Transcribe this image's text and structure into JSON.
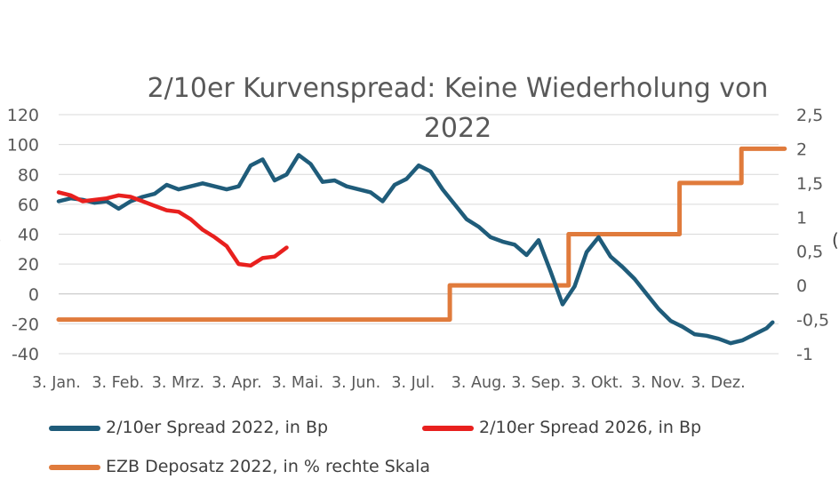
{
  "chart_data": {
    "type": "line",
    "title_line1": "2/10er Kurvenspread: Keine Wiederholung von",
    "title_line2": "2022",
    "x_categories": [
      "3. Jan.",
      "3. Feb.",
      "3. Mrz.",
      "3. Apr.",
      "3. Mai.",
      "3. Jun.",
      "3. Jul.",
      "3. Aug.",
      "3. Sep.",
      "3. Okt.",
      "3. Nov.",
      "3. Dez."
    ],
    "left_axis": {
      "ylim": [
        -40,
        120
      ],
      "ticks": [
        "-40",
        "-20",
        "0",
        "20",
        "40",
        "60",
        "80",
        "100",
        "120"
      ]
    },
    "right_axis": {
      "ylim": [
        -1,
        2.5
      ],
      "ticks": [
        "-1",
        "-0,5",
        "0",
        "0,5",
        "1",
        "1,5",
        "2",
        "2,5"
      ]
    },
    "series": [
      {
        "name": "2/10er Spread 2022, in Bp",
        "color": "#1F5C7A",
        "axis": "left",
        "x": [
          0,
          0.2,
          0.4,
          0.6,
          0.8,
          1.0,
          1.2,
          1.4,
          1.6,
          1.8,
          2.0,
          2.2,
          2.4,
          2.6,
          2.8,
          3.0,
          3.2,
          3.4,
          3.6,
          3.8,
          4.0,
          4.2,
          4.4,
          4.6,
          4.8,
          5.0,
          5.2,
          5.4,
          5.6,
          5.8,
          6.0,
          6.2,
          6.4,
          6.6,
          6.8,
          7.0,
          7.2,
          7.4,
          7.6,
          7.8,
          8.0,
          8.2,
          8.4,
          8.6,
          8.8,
          9.0,
          9.2,
          9.4,
          9.6,
          9.8,
          10.0,
          10.2,
          10.4,
          10.6,
          10.8,
          11.0,
          11.2,
          11.4,
          11.6,
          11.8,
          11.9
        ],
        "values": [
          62,
          64,
          63,
          61,
          62,
          57,
          62,
          65,
          67,
          73,
          70,
          72,
          74,
          72,
          70,
          72,
          86,
          90,
          76,
          80,
          93,
          87,
          75,
          76,
          72,
          70,
          68,
          62,
          73,
          77,
          86,
          82,
          70,
          60,
          50,
          45,
          38,
          35,
          33,
          26,
          36,
          15,
          -7,
          5,
          28,
          38,
          25,
          18,
          10,
          0,
          -10,
          -18,
          -22,
          -27,
          -28,
          -30,
          -33,
          -31,
          -27,
          -23,
          -19
        ]
      },
      {
        "name": "2/10er Spread 2026, in Bp",
        "color": "#E8201E",
        "axis": "left",
        "x": [
          0,
          0.2,
          0.4,
          0.6,
          0.8,
          1.0,
          1.2,
          1.4,
          1.6,
          1.8,
          2.0,
          2.2,
          2.4,
          2.6,
          2.8,
          3.0,
          3.2,
          3.4,
          3.6,
          3.8
        ],
        "values": [
          68,
          66,
          62,
          63,
          64,
          66,
          65,
          62,
          59,
          56,
          55,
          50,
          43,
          38,
          32,
          20,
          19,
          24,
          25,
          31
        ]
      },
      {
        "name": "EZB Deposatz 2022, in % rechte Skala",
        "color": "#E07B3C",
        "axis": "right",
        "x": [
          0,
          6.52,
          6.52,
          8.5,
          8.5,
          10.35,
          10.35,
          11.38,
          11.38,
          12.1
        ],
        "values": [
          -0.5,
          -0.5,
          0,
          0,
          0.75,
          0.75,
          1.5,
          1.5,
          2,
          2
        ]
      }
    ]
  }
}
